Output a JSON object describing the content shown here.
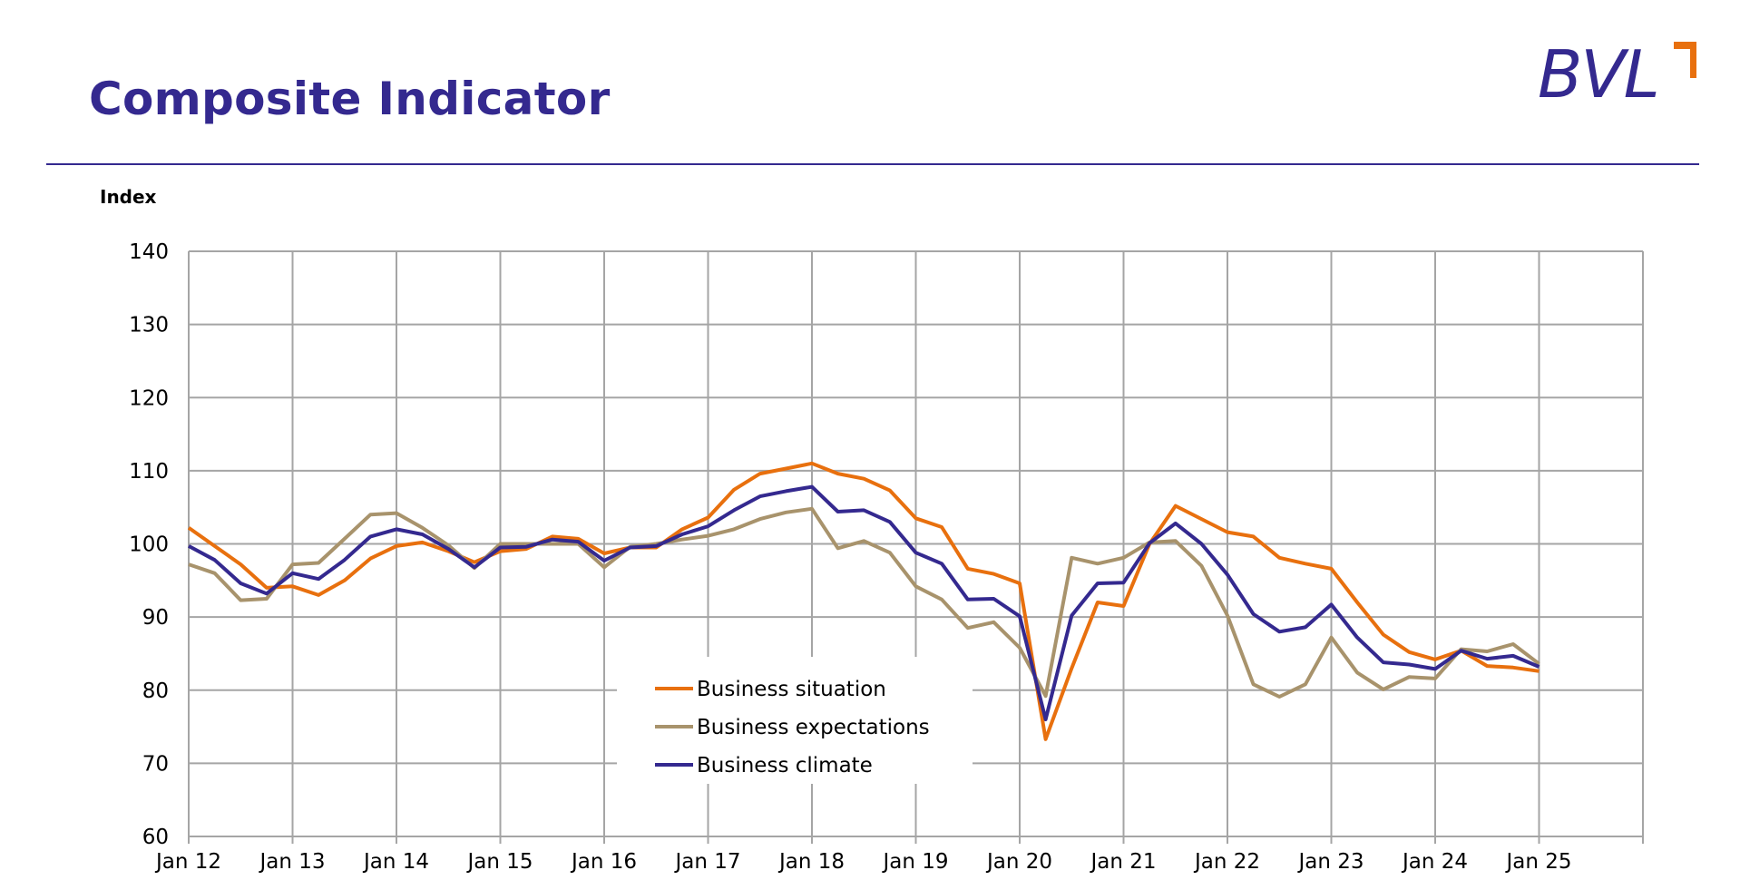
{
  "header": {
    "title": "Composite Indicator",
    "logo_text": "BVL"
  },
  "colors": {
    "brand": "#34298f",
    "accent": "#e8700e",
    "grid": "#a5a5a5"
  },
  "chart_data": {
    "type": "line",
    "title": "",
    "ylabel": "Index",
    "xlabel": "",
    "ylim": [
      60,
      140
    ],
    "yticks": [
      60,
      70,
      80,
      90,
      100,
      110,
      120,
      130,
      140
    ],
    "xlim": [
      "Jan 12",
      "Jan 26"
    ],
    "xtick_labels": [
      "Jan 12",
      "Jan 13",
      "Jan 14",
      "Jan 15",
      "Jan 16",
      "Jan 17",
      "Jan 18",
      "Jan 19",
      "Jan 20",
      "Jan 21",
      "Jan 22",
      "Jan 23",
      "Jan 24",
      "Jan 25"
    ],
    "grid": true,
    "legend_position": "bottom-center",
    "x": [
      "Jan 12",
      "Apr 12",
      "Jul 12",
      "Oct 12",
      "Jan 13",
      "Apr 13",
      "Jul 13",
      "Oct 13",
      "Jan 14",
      "Apr 14",
      "Jul 14",
      "Oct 14",
      "Jan 15",
      "Apr 15",
      "Jul 15",
      "Oct 15",
      "Jan 16",
      "Apr 16",
      "Jul 16",
      "Oct 16",
      "Jan 17",
      "Apr 17",
      "Jul 17",
      "Oct 17",
      "Jan 18",
      "Apr 18",
      "Jul 18",
      "Oct 18",
      "Jan 19",
      "Apr 19",
      "Jul 19",
      "Oct 19",
      "Jan 20",
      "Apr 20",
      "Jul 20",
      "Oct 20",
      "Jan 21",
      "Apr 21",
      "Jul 21",
      "Oct 21",
      "Jan 22",
      "Apr 22",
      "Jul 22",
      "Oct 22",
      "Jan 23",
      "Apr 23",
      "Jul 23",
      "Oct 23",
      "Jan 24",
      "Apr 24",
      "Jul 24",
      "Oct 24",
      "Jan 25",
      "Apr 25"
    ],
    "series": [
      {
        "name": "Business situation",
        "color": "#e8700e",
        "values": [
          102.2,
          99.7,
          97.2,
          94.0,
          94.2,
          93.0,
          95.0,
          98.0,
          99.7,
          100.2,
          99.0,
          97.5,
          99.0,
          99.3,
          101.0,
          100.7,
          98.7,
          99.5,
          99.5,
          102.0,
          103.6,
          107.4,
          109.6,
          110.3,
          111.0,
          109.6,
          108.9,
          107.3,
          103.5,
          102.3,
          96.6,
          95.9,
          94.6,
          73.3,
          83.0,
          92.0,
          91.5,
          100.0,
          105.2,
          103.4,
          101.6,
          101.0,
          98.1,
          97.3,
          96.6,
          92.0,
          87.6,
          85.2,
          84.2,
          85.4,
          83.3,
          83.1,
          82.6,
          null
        ]
      },
      {
        "name": "Business expectations",
        "color": "#a8936c",
        "values": [
          97.2,
          96.0,
          92.3,
          92.5,
          97.2,
          97.4,
          100.7,
          104.0,
          104.2,
          102.2,
          99.8,
          96.7,
          100.0,
          100.0,
          100.0,
          100.0,
          96.8,
          99.6,
          100.0,
          100.6,
          101.1,
          102.0,
          103.4,
          104.3,
          104.8,
          99.4,
          100.4,
          98.8,
          94.2,
          92.4,
          88.5,
          89.3,
          85.8,
          79.2,
          98.1,
          97.3,
          98.1,
          100.2,
          100.4,
          97.0,
          90.2,
          80.8,
          79.1,
          80.8,
          87.2,
          82.4,
          80.1,
          81.8,
          81.6,
          85.6,
          85.3,
          86.3,
          83.6,
          null
        ]
      },
      {
        "name": "Business climate",
        "color": "#34298f",
        "values": [
          99.7,
          97.8,
          94.6,
          93.2,
          96.0,
          95.2,
          97.8,
          101.0,
          102.0,
          101.3,
          99.3,
          96.8,
          99.5,
          99.6,
          100.6,
          100.3,
          97.7,
          99.5,
          99.7,
          101.3,
          102.4,
          104.6,
          106.5,
          107.2,
          107.8,
          104.4,
          104.6,
          103.0,
          98.8,
          97.3,
          92.4,
          92.5,
          90.1,
          76.0,
          90.2,
          94.6,
          94.7,
          100.1,
          102.8,
          100.0,
          95.8,
          90.4,
          88.0,
          88.6,
          91.7,
          87.2,
          83.8,
          83.5,
          82.9,
          85.4,
          84.3,
          84.7,
          83.2,
          null
        ]
      }
    ]
  }
}
